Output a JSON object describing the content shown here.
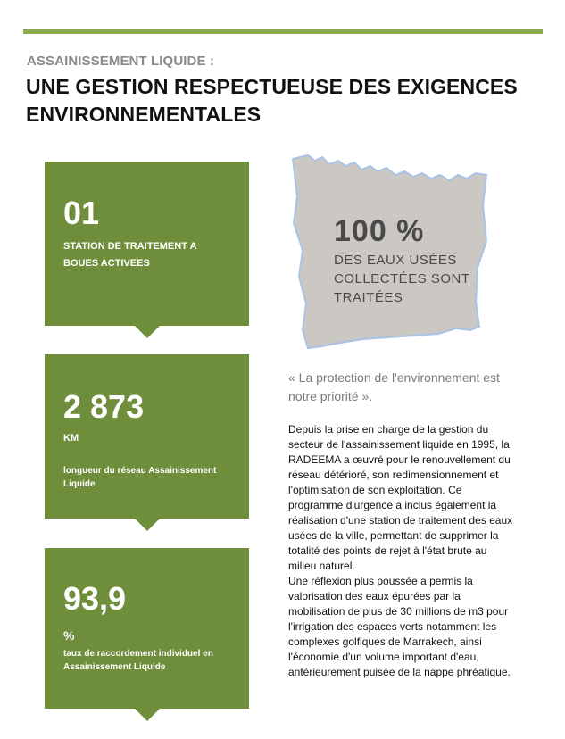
{
  "header": {
    "kicker": "ASSAINISSEMENT LIQUIDE :",
    "title": "UNE GESTION RESPECTUEUSE DES EXIGENCES ENVIRONNEMENTALES"
  },
  "cards": [
    {
      "number": "01",
      "unit": "",
      "description": "STATION DE TRAITEMENT A BOUES ACTIVEES"
    },
    {
      "number": "2 873",
      "unit": "KM",
      "description": "longueur du réseau Assainissement Liquide"
    },
    {
      "number": "93,9",
      "unit": "%",
      "description": "taux de raccordement individuel en Assainissement Liquide"
    }
  ],
  "stat": {
    "value": "100 %",
    "caption": "DES EAUX USÉES COLLECTÉES SONT TRAITÉES"
  },
  "quote": "«  La protection de l'environnement est notre priorité ».",
  "body": {
    "p1": "Depuis la prise en charge de la gestion du secteur de l'assainissement liquide en 1995, la RADEEMA a œuvré pour le renouvellement du réseau détérioré, son redimensionnement et l'optimisation de son exploitation.  Ce programme d'urgence a inclus également la réalisation d'une station de traitement des eaux usées de la ville, permettant de supprimer  la totalité des points de rejet à l'état brute au milieu naturel.",
    "p2": "Une réflexion plus poussée a permis la valorisation des eaux épurées par la mobilisation de plus de 30 millions  de m3 pour l'irrigation des espaces verts notamment les complexes golfiques  de Marrakech, ainsi l'économie d'un volume important d'eau, antérieurement puisée de la nappe phréatique."
  },
  "colors": {
    "accent_green": "#6f8e3b",
    "topbar_green": "#8aab4e",
    "map_gray": "#cbc7c2",
    "map_edge_blue": "#a9c3e6"
  }
}
